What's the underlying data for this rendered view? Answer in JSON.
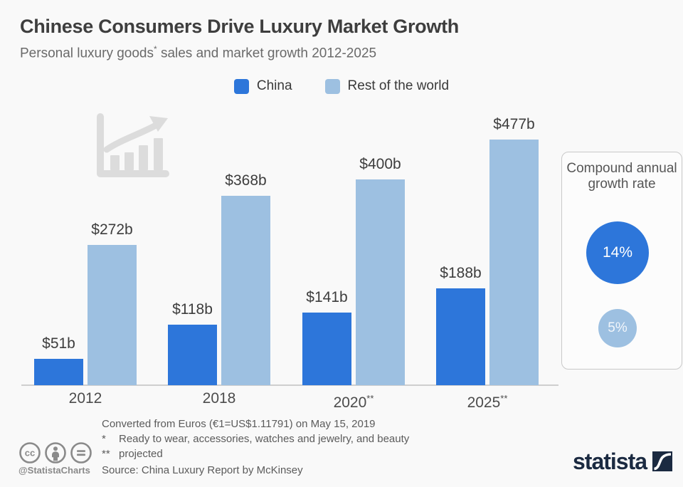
{
  "header": {
    "title": "Chinese Consumers Drive Luxury Market Growth",
    "subtitle_pre": "Personal luxury goods",
    "subtitle_sup": "*",
    "subtitle_post": " sales and market growth 2012-2025"
  },
  "legend": [
    {
      "label": "China",
      "color": "#2d76da"
    },
    {
      "label": "Rest of the world",
      "color": "#9dc0e1"
    }
  ],
  "chart_data": {
    "type": "bar",
    "title": "Chinese Consumers Drive Luxury Market Growth",
    "subtitle": "Personal luxury goods* sales and market growth 2012-2025",
    "categories": [
      "2012",
      "2018",
      "2020**",
      "2025**"
    ],
    "series": [
      {
        "name": "China",
        "color": "#2d76da",
        "values": [
          51,
          118,
          141,
          188
        ],
        "labels": [
          "$51b",
          "$118b",
          "$141b",
          "$188b"
        ]
      },
      {
        "name": "Rest of the world",
        "color": "#9dc0e1",
        "values": [
          272,
          368,
          400,
          477
        ],
        "labels": [
          "$272b",
          "$368b",
          "$400b",
          "$477b"
        ]
      }
    ],
    "unit": "$b",
    "ylim": [
      0,
      500
    ],
    "grid": false,
    "legend_position": "top",
    "value_labels_shown": true
  },
  "cagr_panel": {
    "title": "Compound annual growth rate",
    "items": [
      {
        "series": "China",
        "value": "14%",
        "color": "#2d76da"
      },
      {
        "series": "Rest of the world",
        "value": "5%",
        "color": "#9dc0e1"
      }
    ]
  },
  "footer": {
    "conversion_note": "Converted from Euros (€1=US$1.11791) on May 15, 2019",
    "footnote1": {
      "marker": "*",
      "text": "Ready to wear, accessories, watches and jewelry, and beauty"
    },
    "footnote2": {
      "marker": "**",
      "text": "projected"
    },
    "source": "Source: China Luxury Report by McKinsey",
    "handle": "@StatistaCharts",
    "brand": "statista"
  },
  "colors": {
    "china": "#2d76da",
    "rest_of_world": "#9dc0e1",
    "axis": "#cfcfcf",
    "growth_icon": "#dcdcdc",
    "cc_gray": "#8a8a8a",
    "brand_navy": "#1b2a41"
  }
}
